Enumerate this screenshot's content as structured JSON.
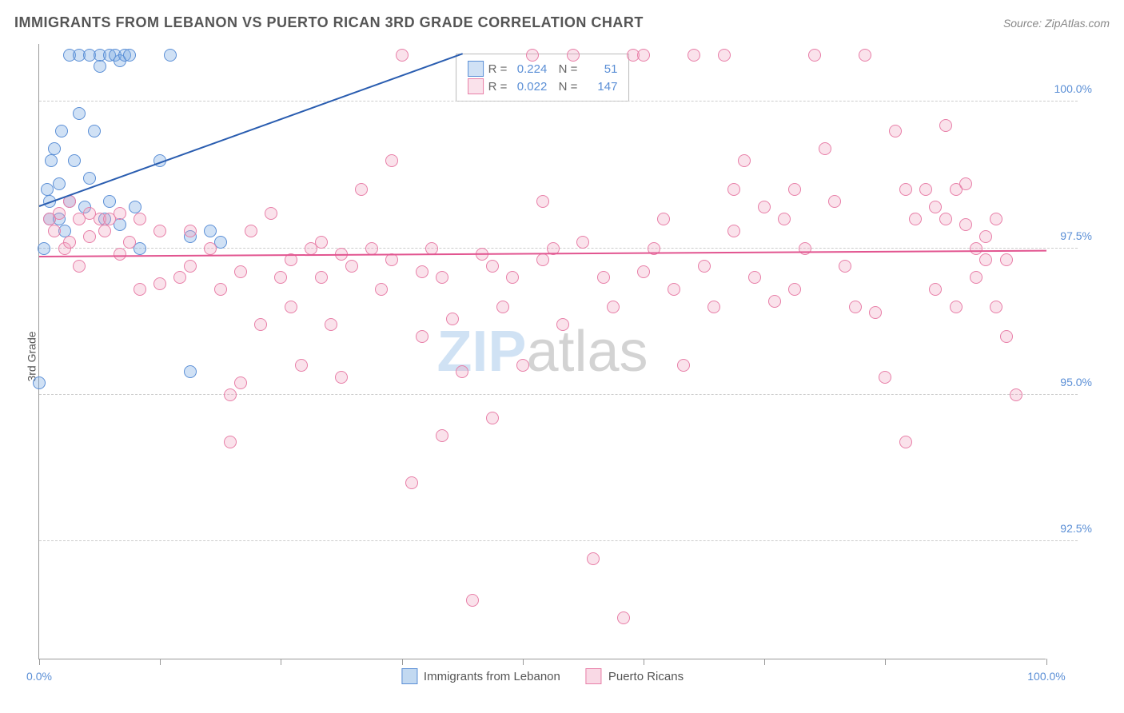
{
  "header": {
    "title": "IMMIGRANTS FROM LEBANON VS PUERTO RICAN 3RD GRADE CORRELATION CHART",
    "source": "Source: ZipAtlas.com"
  },
  "ylabel": "3rd Grade",
  "watermark": {
    "part1": "ZIP",
    "part2": "atlas"
  },
  "chart": {
    "type": "scatter",
    "xlim": [
      0,
      100
    ],
    "ylim": [
      90.5,
      101
    ],
    "xtick_positions": [
      0,
      12,
      24,
      36,
      48,
      60,
      72,
      84,
      100
    ],
    "xtick_labels": {
      "start": "0.0%",
      "end": "100.0%"
    },
    "ytick_positions": [
      92.5,
      95.0,
      97.5,
      100.0
    ],
    "ytick_labels": [
      "92.5%",
      "95.0%",
      "97.5%",
      "100.0%"
    ],
    "background_color": "#ffffff",
    "grid_color": "#cccccc",
    "axis_color": "#999999",
    "label_color": "#5b8fd6",
    "marker_radius": 8,
    "marker_stroke_width": 1.5,
    "series": [
      {
        "name": "Immigrants from Lebanon",
        "fill_color": "rgba(120,170,225,0.35)",
        "stroke_color": "#5b8fd6",
        "R": "0.224",
        "N": "51",
        "trend": {
          "x1": 0,
          "y1": 98.2,
          "x2": 42,
          "y2": 100.8,
          "color": "#2a5db0",
          "width": 2
        },
        "points": [
          [
            0,
            95.2
          ],
          [
            0.5,
            97.5
          ],
          [
            1,
            98.0
          ],
          [
            1,
            98.3
          ],
          [
            0.8,
            98.5
          ],
          [
            1.2,
            99.0
          ],
          [
            1.5,
            99.2
          ],
          [
            2,
            98.0
          ],
          [
            2,
            98.6
          ],
          [
            2.2,
            99.5
          ],
          [
            2.5,
            97.8
          ],
          [
            3,
            98.3
          ],
          [
            3,
            100.8
          ],
          [
            3.5,
            99.0
          ],
          [
            4,
            100.8
          ],
          [
            4,
            99.8
          ],
          [
            4.5,
            98.2
          ],
          [
            5,
            100.8
          ],
          [
            5,
            98.7
          ],
          [
            5.5,
            99.5
          ],
          [
            6,
            100.8
          ],
          [
            6,
            100.6
          ],
          [
            6.5,
            98.0
          ],
          [
            7,
            100.8
          ],
          [
            7,
            98.3
          ],
          [
            7.5,
            100.8
          ],
          [
            8,
            100.7
          ],
          [
            8,
            97.9
          ],
          [
            8.5,
            100.8
          ],
          [
            9,
            100.8
          ],
          [
            9.5,
            98.2
          ],
          [
            10,
            97.5
          ],
          [
            12,
            99.0
          ],
          [
            13,
            100.8
          ],
          [
            15,
            97.7
          ],
          [
            15,
            95.4
          ],
          [
            17,
            97.8
          ],
          [
            18,
            97.6
          ]
        ]
      },
      {
        "name": "Puerto Ricans",
        "fill_color": "rgba(240,160,190,0.30)",
        "stroke_color": "#e87fa8",
        "R": "0.022",
        "N": "147",
        "trend": {
          "x1": 0,
          "y1": 97.35,
          "x2": 100,
          "y2": 97.45,
          "color": "#e25590",
          "width": 2
        },
        "points": [
          [
            1,
            98.0
          ],
          [
            1.5,
            97.8
          ],
          [
            2,
            98.1
          ],
          [
            2.5,
            97.5
          ],
          [
            3,
            98.3
          ],
          [
            3,
            97.6
          ],
          [
            4,
            98.0
          ],
          [
            4,
            97.2
          ],
          [
            5,
            98.1
          ],
          [
            5,
            97.7
          ],
          [
            6,
            98.0
          ],
          [
            6.5,
            97.8
          ],
          [
            7,
            98.0
          ],
          [
            8,
            97.4
          ],
          [
            8,
            98.1
          ],
          [
            9,
            97.6
          ],
          [
            10,
            98.0
          ],
          [
            10,
            96.8
          ],
          [
            12,
            97.8
          ],
          [
            12,
            96.9
          ],
          [
            14,
            97.0
          ],
          [
            15,
            97.2
          ],
          [
            15,
            97.8
          ],
          [
            17,
            97.5
          ],
          [
            18,
            96.8
          ],
          [
            19,
            95.0
          ],
          [
            19,
            94.2
          ],
          [
            20,
            97.1
          ],
          [
            20,
            95.2
          ],
          [
            21,
            97.8
          ],
          [
            22,
            96.2
          ],
          [
            23,
            98.1
          ],
          [
            24,
            97.0
          ],
          [
            25,
            97.3
          ],
          [
            25,
            96.5
          ],
          [
            26,
            95.5
          ],
          [
            27,
            97.5
          ],
          [
            28,
            97.6
          ],
          [
            28,
            97.0
          ],
          [
            29,
            96.2
          ],
          [
            30,
            97.4
          ],
          [
            30,
            95.3
          ],
          [
            31,
            97.2
          ],
          [
            32,
            98.5
          ],
          [
            33,
            97.5
          ],
          [
            34,
            96.8
          ],
          [
            35,
            97.3
          ],
          [
            35,
            99.0
          ],
          [
            36,
            100.8
          ],
          [
            37,
            93.5
          ],
          [
            38,
            96.0
          ],
          [
            38,
            97.1
          ],
          [
            39,
            97.5
          ],
          [
            40,
            97.0
          ],
          [
            40,
            94.3
          ],
          [
            41,
            96.3
          ],
          [
            42,
            95.4
          ],
          [
            43,
            91.5
          ],
          [
            44,
            97.4
          ],
          [
            45,
            97.2
          ],
          [
            45,
            94.6
          ],
          [
            46,
            96.5
          ],
          [
            47,
            97.0
          ],
          [
            48,
            95.5
          ],
          [
            49,
            100.8
          ],
          [
            50,
            97.3
          ],
          [
            50,
            98.3
          ],
          [
            51,
            97.5
          ],
          [
            52,
            96.2
          ],
          [
            53,
            100.8
          ],
          [
            54,
            97.6
          ],
          [
            55,
            92.2
          ],
          [
            56,
            97.0
          ],
          [
            57,
            96.5
          ],
          [
            58,
            91.2
          ],
          [
            59,
            100.8
          ],
          [
            60,
            97.1
          ],
          [
            60,
            100.8
          ],
          [
            61,
            97.5
          ],
          [
            62,
            98.0
          ],
          [
            63,
            96.8
          ],
          [
            64,
            95.5
          ],
          [
            65,
            100.8
          ],
          [
            66,
            97.2
          ],
          [
            67,
            96.5
          ],
          [
            68,
            100.8
          ],
          [
            69,
            97.8
          ],
          [
            69,
            98.5
          ],
          [
            70,
            99.0
          ],
          [
            71,
            97.0
          ],
          [
            72,
            98.2
          ],
          [
            73,
            96.6
          ],
          [
            74,
            98.0
          ],
          [
            75,
            96.8
          ],
          [
            75,
            98.5
          ],
          [
            76,
            97.5
          ],
          [
            77,
            100.8
          ],
          [
            78,
            99.2
          ],
          [
            79,
            98.3
          ],
          [
            80,
            97.2
          ],
          [
            81,
            96.5
          ],
          [
            82,
            100.8
          ],
          [
            83,
            96.4
          ],
          [
            84,
            95.3
          ],
          [
            85,
            99.5
          ],
          [
            86,
            98.5
          ],
          [
            86,
            94.2
          ],
          [
            87,
            98.0
          ],
          [
            88,
            98.5
          ],
          [
            89,
            98.2
          ],
          [
            89,
            96.8
          ],
          [
            90,
            99.6
          ],
          [
            90,
            98.0
          ],
          [
            91,
            98.5
          ],
          [
            91,
            96.5
          ],
          [
            92,
            97.9
          ],
          [
            92,
            98.6
          ],
          [
            93,
            97.5
          ],
          [
            93,
            97.0
          ],
          [
            94,
            97.7
          ],
          [
            94,
            97.3
          ],
          [
            95,
            98.0
          ],
          [
            95,
            96.5
          ],
          [
            96,
            97.3
          ],
          [
            96,
            96.0
          ],
          [
            97,
            95.0
          ]
        ]
      }
    ]
  },
  "bottom_legend": [
    {
      "label": "Immigrants from Lebanon",
      "fill": "rgba(120,170,225,0.45)",
      "stroke": "#5b8fd6"
    },
    {
      "label": "Puerto Ricans",
      "fill": "rgba(240,160,190,0.40)",
      "stroke": "#e87fa8"
    }
  ]
}
